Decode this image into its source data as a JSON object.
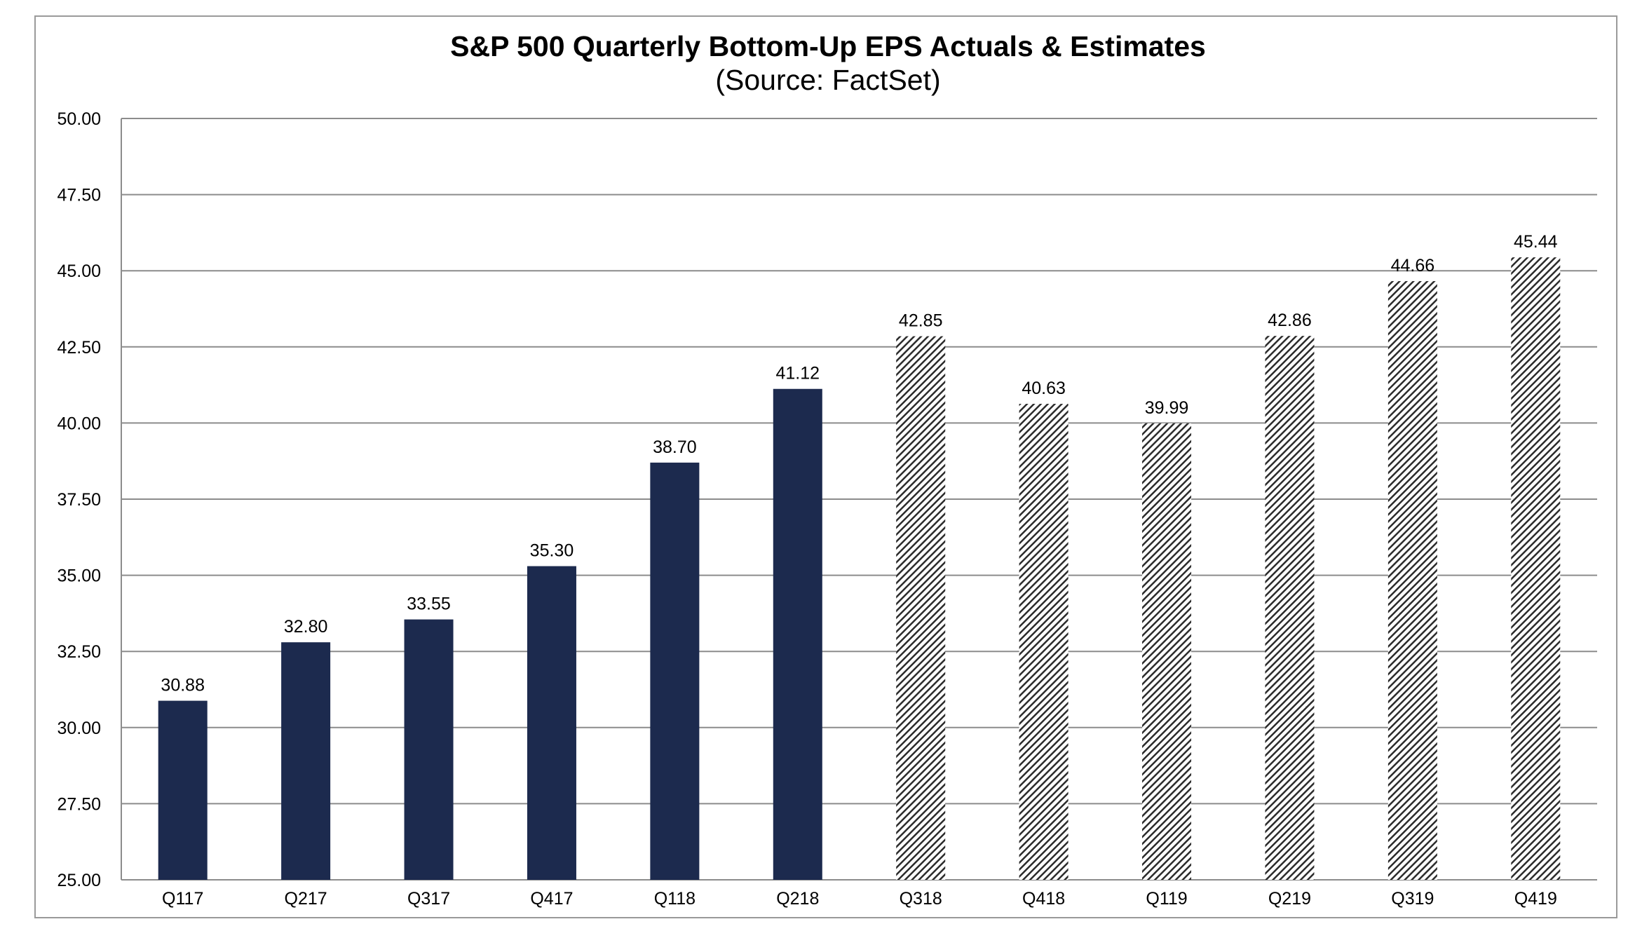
{
  "chart_data": {
    "type": "bar",
    "title": "S&P 500 Quarterly Bottom-Up EPS Actuals & Estimates",
    "subtitle": "(Source: FactSet)",
    "xlabel": "",
    "ylabel": "",
    "ylim": [
      25,
      50
    ],
    "yticks": [
      "25.00",
      "27.50",
      "30.00",
      "32.50",
      "35.00",
      "37.50",
      "40.00",
      "42.50",
      "45.00",
      "47.50",
      "50.00"
    ],
    "ytick_values": [
      25,
      27.5,
      30,
      32.5,
      35,
      37.5,
      40,
      42.5,
      45,
      47.5,
      50
    ],
    "grid": true,
    "categories": [
      "Q117",
      "Q217",
      "Q317",
      "Q417",
      "Q118",
      "Q218",
      "Q318",
      "Q418",
      "Q119",
      "Q219",
      "Q319",
      "Q419"
    ],
    "values": [
      30.88,
      32.8,
      33.55,
      35.3,
      38.7,
      41.12,
      42.85,
      40.63,
      39.99,
      42.86,
      44.66,
      45.44
    ],
    "value_labels": [
      "30.88",
      "32.80",
      "33.55",
      "35.30",
      "38.70",
      "41.12",
      "42.85",
      "40.63",
      "39.99",
      "42.86",
      "44.66",
      "45.44"
    ],
    "bar_styles": [
      "solid",
      "solid",
      "solid",
      "solid",
      "solid",
      "solid",
      "hatched",
      "hatched",
      "hatched",
      "hatched",
      "hatched",
      "hatched"
    ],
    "colors": {
      "solid_bar": "#1c2a4e",
      "hatch_line": "#2b2b2b",
      "grid": "#8c8c8c",
      "frame": "#9a9a9a"
    }
  }
}
